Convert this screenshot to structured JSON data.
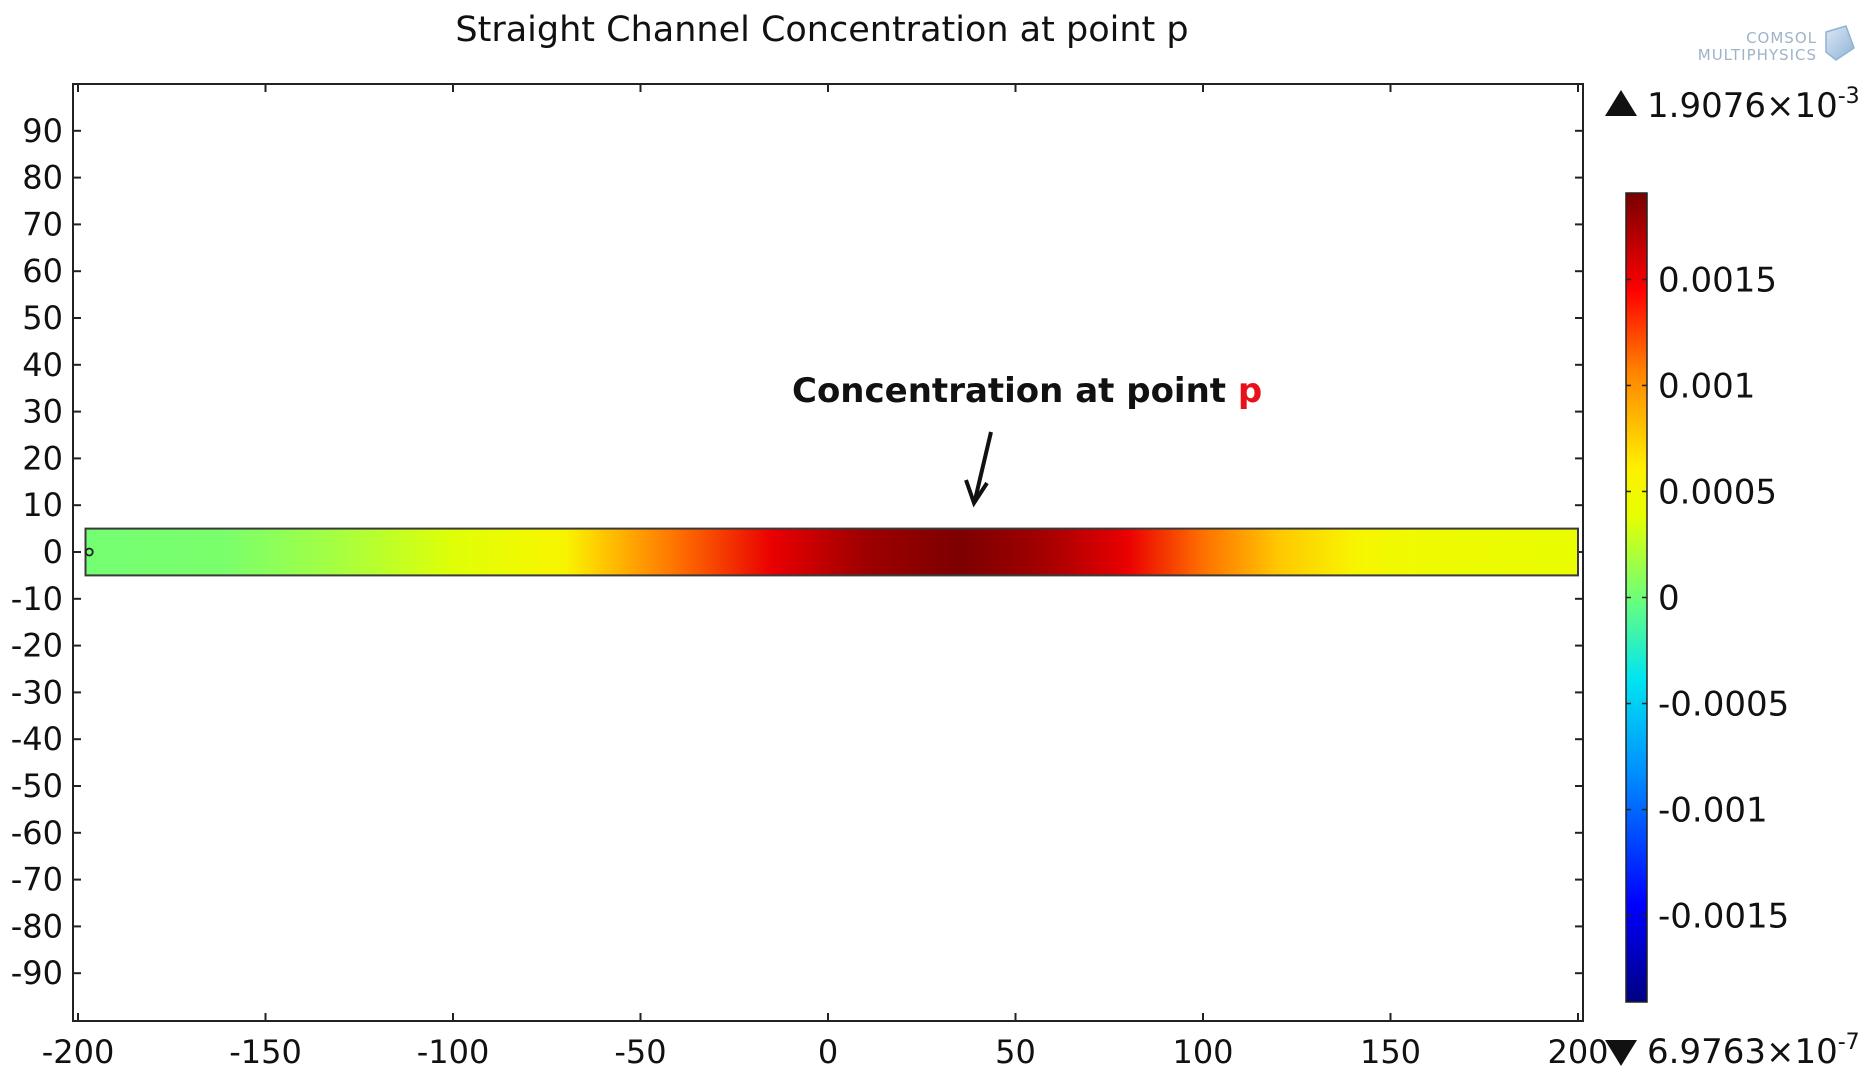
{
  "chart_data": {
    "type": "heatmap",
    "title": "Straight Channel Concentration at point p",
    "xlabel": "",
    "ylabel": "",
    "xlim": [
      -200,
      200
    ],
    "ylim": [
      -100,
      100
    ],
    "x_ticks": [
      -200,
      -150,
      -100,
      -50,
      0,
      50,
      100,
      150,
      200
    ],
    "y_ticks": [
      90,
      80,
      70,
      60,
      50,
      40,
      30,
      20,
      10,
      0,
      -10,
      -20,
      -30,
      -40,
      -50,
      -60,
      -70,
      -80,
      -90
    ],
    "channel": {
      "x_range": [
        -198,
        200
      ],
      "y_range": [
        -5,
        5
      ]
    },
    "field_profile": {
      "x": [
        -198,
        -160,
        -130,
        -100,
        -80,
        -70,
        -60,
        -40,
        -15,
        10,
        35,
        55,
        65,
        80,
        100,
        120,
        140,
        150,
        170,
        200
      ],
      "value": [
        2e-05,
        4e-05,
        0.00018,
        0.00036,
        0.00048,
        0.00055,
        0.00078,
        0.00112,
        0.00152,
        0.00178,
        0.00189,
        0.00178,
        0.00168,
        0.00152,
        0.00112,
        0.00078,
        0.00055,
        0.00048,
        0.00044,
        0.00042
      ]
    },
    "probe_point": {
      "x": -197,
      "y": 0
    },
    "colorbar": {
      "colormap": "rainbow",
      "range": [
        -0.0019076,
        0.0019076
      ],
      "ticks": [
        0.0015,
        0.001,
        0.0005,
        0,
        -0.0005,
        -0.001,
        -0.0015
      ],
      "tick_labels": [
        "0.0015",
        "0.001",
        "0.0005",
        "0",
        "-0.0005",
        "-0.001",
        "-0.0015"
      ],
      "max_label": {
        "mantissa": "1.9076×10",
        "exponent": "-3"
      },
      "min_label": {
        "mantissa": "6.9763×10",
        "exponent": "-7"
      }
    },
    "annotation": {
      "text": "Concentration at point ",
      "highlight": "p",
      "highlight_color": "#e8101a"
    },
    "colors": {
      "axes": "#222222",
      "background": "#ffffff"
    }
  },
  "logo": {
    "line1": "COMSOL",
    "line2": "MULTIPHYSICS"
  }
}
